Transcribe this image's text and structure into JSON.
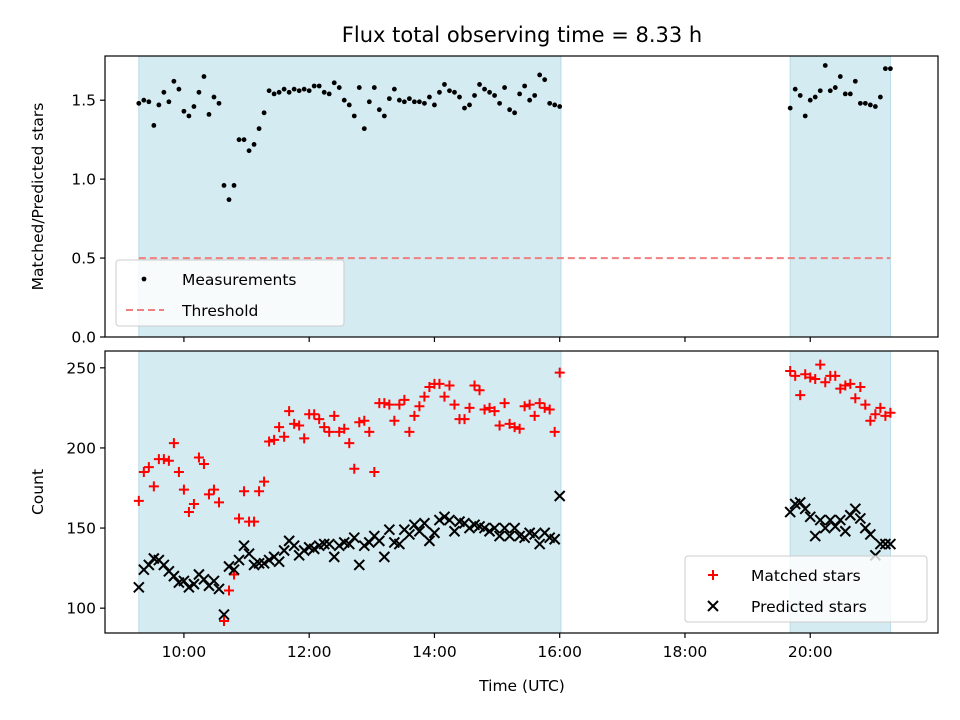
{
  "chart_data": {
    "title": "Flux total observing time = 8.33 h",
    "xlabel": "Time (UTC)",
    "x_unit": "hours UTC",
    "xlim": [
      8.74,
      22.04
    ],
    "xticks": [
      {
        "value": 10,
        "label": "10:00"
      },
      {
        "value": 12,
        "label": "12:00"
      },
      {
        "value": 14,
        "label": "14:00"
      },
      {
        "value": 16,
        "label": "16:00"
      },
      {
        "value": 18,
        "label": "18:00"
      },
      {
        "value": 20,
        "label": "20:00"
      }
    ],
    "colors": {
      "band": "#d4ebf1",
      "band_edge": "#b7dbe6",
      "measurements": "#000000",
      "threshold": "#f07f7f",
      "matched": "#ff0000",
      "predicted": "#000000"
    },
    "observing_windows": [
      [
        9.28,
        16.02
      ],
      [
        19.68,
        21.28
      ]
    ],
    "panels": [
      {
        "type": "scatter",
        "ylabel": "Matched/Predicted stars",
        "ylim": [
          0,
          1.78
        ],
        "yticks": [
          {
            "value": 0,
            "label": "0.0"
          },
          {
            "value": 0.5,
            "label": "0.5"
          },
          {
            "value": 1.0,
            "label": "1.0"
          },
          {
            "value": 1.5,
            "label": "1.5"
          }
        ],
        "legend_position": "lower-left",
        "series": [
          {
            "name": "Measurements",
            "marker": "dot",
            "x": [
              9.28,
              9.36,
              9.44,
              9.52,
              9.6,
              9.68,
              9.76,
              9.84,
              9.92,
              10.0,
              10.08,
              10.16,
              10.24,
              10.32,
              10.4,
              10.48,
              10.56,
              10.64,
              10.72,
              10.8,
              10.88,
              10.96,
              11.04,
              11.12,
              11.2,
              11.28,
              11.36,
              11.44,
              11.52,
              11.6,
              11.68,
              11.76,
              11.84,
              11.92,
              12.0,
              12.08,
              12.16,
              12.24,
              12.32,
              12.4,
              12.48,
              12.56,
              12.64,
              12.72,
              12.8,
              12.88,
              12.96,
              13.04,
              13.12,
              13.2,
              13.28,
              13.36,
              13.44,
              13.52,
              13.6,
              13.68,
              13.76,
              13.84,
              13.92,
              14.0,
              14.08,
              14.16,
              14.24,
              14.32,
              14.4,
              14.48,
              14.56,
              14.64,
              14.72,
              14.8,
              14.88,
              14.96,
              15.04,
              15.12,
              15.2,
              15.28,
              15.36,
              15.44,
              15.52,
              15.6,
              15.68,
              15.76,
              15.84,
              15.92,
              16.0,
              19.68,
              19.76,
              19.84,
              19.92,
              20.0,
              20.08,
              20.16,
              20.24,
              20.32,
              20.4,
              20.48,
              20.56,
              20.64,
              20.72,
              20.8,
              20.88,
              20.96,
              21.04,
              21.12,
              21.2,
              21.28
            ],
            "y": [
              1.48,
              1.5,
              1.49,
              1.34,
              1.47,
              1.55,
              1.49,
              1.62,
              1.57,
              1.43,
              1.4,
              1.46,
              1.55,
              1.65,
              1.41,
              1.52,
              1.48,
              0.96,
              0.87,
              0.96,
              1.25,
              1.25,
              1.18,
              1.22,
              1.32,
              1.42,
              1.56,
              1.54,
              1.55,
              1.57,
              1.55,
              1.57,
              1.56,
              1.57,
              1.56,
              1.59,
              1.59,
              1.55,
              1.54,
              1.61,
              1.58,
              1.5,
              1.47,
              1.4,
              1.58,
              1.32,
              1.49,
              1.58,
              1.44,
              1.4,
              1.51,
              1.57,
              1.5,
              1.49,
              1.51,
              1.49,
              1.49,
              1.48,
              1.52,
              1.47,
              1.55,
              1.6,
              1.56,
              1.55,
              1.52,
              1.45,
              1.47,
              1.53,
              1.6,
              1.57,
              1.55,
              1.53,
              1.48,
              1.58,
              1.44,
              1.42,
              1.54,
              1.59,
              1.5,
              1.53,
              1.66,
              1.63,
              1.48,
              1.47,
              1.46,
              1.45,
              1.57,
              1.53,
              1.4,
              1.5,
              1.52,
              1.56,
              1.72,
              1.56,
              1.58,
              1.65,
              1.54,
              1.54,
              1.62,
              1.48,
              1.48,
              1.47,
              1.46,
              1.52,
              1.7,
              1.7
            ]
          },
          {
            "name": "Threshold",
            "marker": "dashed-line",
            "x": [
              9.28,
              21.28
            ],
            "y": [
              0.5,
              0.5
            ]
          }
        ]
      },
      {
        "type": "scatter",
        "ylabel": "Count",
        "ylim": [
          84.5,
          260.5
        ],
        "yticks": [
          {
            "value": 100,
            "label": "100"
          },
          {
            "value": 150,
            "label": "150"
          },
          {
            "value": 200,
            "label": "200"
          },
          {
            "value": 250,
            "label": "250"
          }
        ],
        "legend_position": "lower-right",
        "series": [
          {
            "name": "Matched stars",
            "marker": "plus",
            "x": [
              9.28,
              9.36,
              9.44,
              9.52,
              9.6,
              9.68,
              9.76,
              9.84,
              9.92,
              10.0,
              10.08,
              10.16,
              10.24,
              10.32,
              10.4,
              10.48,
              10.56,
              10.64,
              10.72,
              10.8,
              10.88,
              10.96,
              11.04,
              11.12,
              11.2,
              11.28,
              11.36,
              11.44,
              11.52,
              11.6,
              11.68,
              11.76,
              11.84,
              11.92,
              12.0,
              12.08,
              12.16,
              12.24,
              12.32,
              12.4,
              12.48,
              12.56,
              12.64,
              12.72,
              12.8,
              12.88,
              12.96,
              13.04,
              13.12,
              13.2,
              13.28,
              13.36,
              13.44,
              13.52,
              13.6,
              13.68,
              13.76,
              13.84,
              13.92,
              14.0,
              14.08,
              14.16,
              14.24,
              14.32,
              14.4,
              14.48,
              14.56,
              14.64,
              14.72,
              14.8,
              14.88,
              14.96,
              15.04,
              15.12,
              15.2,
              15.28,
              15.36,
              15.44,
              15.52,
              15.6,
              15.68,
              15.76,
              15.84,
              15.92,
              16.0,
              19.68,
              19.76,
              19.84,
              19.92,
              20.0,
              20.08,
              20.16,
              20.24,
              20.32,
              20.4,
              20.48,
              20.56,
              20.64,
              20.72,
              20.8,
              20.88,
              20.96,
              21.04,
              21.12,
              21.2,
              21.28
            ],
            "y": [
              167,
              185,
              188,
              176,
              193,
              193,
              192,
              203,
              185,
              174,
              160,
              165,
              194,
              190,
              171,
              174,
              166,
              92,
              111,
              121,
              156,
              173,
              154,
              154,
              173,
              179,
              204,
              205,
              213,
              207,
              223,
              215,
              214,
              206,
              221,
              221,
              218,
              213,
              210,
              220,
              210,
              212,
              203,
              187,
              216,
              217,
              210,
              185,
              228,
              228,
              227,
              217,
              227,
              230,
              210,
              220,
              226,
              232,
              238,
              240,
              240,
              232,
              239,
              227,
              218,
              218,
              225,
              239,
              236,
              224,
              225,
              223,
              214,
              228,
              215,
              213,
              212,
              226,
              227,
              220,
              228,
              225,
              224,
              210,
              247,
              248,
              245,
              233,
              246,
              244,
              243,
              252,
              241,
              245,
              245,
              237,
              239,
              240,
              231,
              238,
              227,
              217,
              221,
              225,
              220,
              222
            ],
            "_fix": 0
          },
          {
            "name": "Predicted stars",
            "marker": "x",
            "x": [
              9.28,
              9.36,
              9.44,
              9.52,
              9.6,
              9.68,
              9.76,
              9.84,
              9.92,
              10.0,
              10.08,
              10.16,
              10.24,
              10.32,
              10.4,
              10.48,
              10.56,
              10.64,
              10.72,
              10.8,
              10.88,
              10.96,
              11.04,
              11.12,
              11.2,
              11.28,
              11.36,
              11.44,
              11.52,
              11.6,
              11.68,
              11.76,
              11.84,
              11.92,
              12.0,
              12.08,
              12.16,
              12.24,
              12.32,
              12.4,
              12.48,
              12.56,
              12.64,
              12.72,
              12.8,
              12.88,
              12.96,
              13.04,
              13.12,
              13.2,
              13.28,
              13.36,
              13.44,
              13.52,
              13.6,
              13.68,
              13.76,
              13.84,
              13.92,
              14.0,
              14.08,
              14.16,
              14.24,
              14.32,
              14.4,
              14.48,
              14.56,
              14.64,
              14.72,
              14.8,
              14.88,
              14.96,
              15.04,
              15.12,
              15.2,
              15.28,
              15.36,
              15.44,
              15.52,
              15.6,
              15.68,
              15.76,
              15.84,
              15.92,
              16.0,
              19.68,
              19.76,
              19.84,
              19.92,
              20.0,
              20.08,
              20.16,
              20.24,
              20.32,
              20.4,
              20.48,
              20.56,
              20.64,
              20.72,
              20.8,
              20.88,
              20.96,
              21.04,
              21.12,
              21.2,
              21.28
            ],
            "y": [
              113,
              124,
              127,
              131,
              130,
              127,
              123,
              120,
              116,
              117,
              113,
              115,
              121,
              118,
              114,
              117,
              112,
              96,
              126,
              124,
              130,
              139,
              134,
              127,
              128,
              128,
              130,
              132,
              129,
              136,
              142,
              139,
              133,
              136,
              138,
              137,
              139,
              140,
              140,
              132,
              139,
              141,
              140,
              144,
              127,
              139,
              141,
              145,
              142,
              132,
              149,
              141,
              140,
              149,
              146,
              152,
              148,
              153,
              142,
              147,
              155,
              157,
              155,
              148,
              154,
              153,
              150,
              152,
              151,
              150,
              148,
              150,
              145,
              150,
              145,
              150,
              145,
              144,
              147,
              146,
              140,
              147,
              144,
              143,
              170,
              160,
              165,
              166,
              162,
              157,
              145,
              155,
              150,
              155,
              151,
              155,
              148,
              158,
              162,
              156,
              150,
              146,
              133,
              140,
              140,
              140
            ]
          }
        ]
      }
    ]
  }
}
